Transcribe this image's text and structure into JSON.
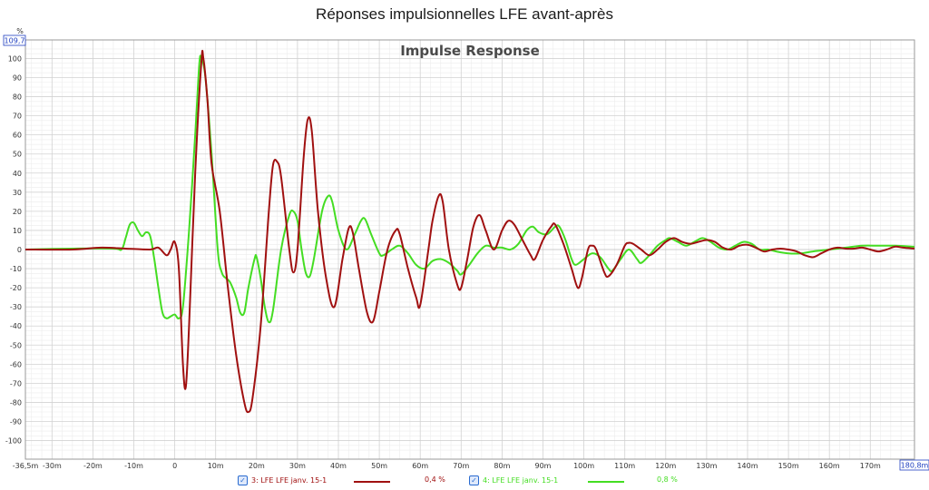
{
  "page": {
    "title": "Réponses impulsionnelles LFE avant-après"
  },
  "chart_data": {
    "type": "line",
    "title": "Impulse Response",
    "xlabel": "",
    "ylabel": "%",
    "xlim": [
      -36.5,
      180.8
    ],
    "ylim": [
      -109.7,
      109.7
    ],
    "x_ticks": [
      {
        "v": -36.5,
        "label": "-36,5m"
      },
      {
        "v": -30,
        "label": "-30m"
      },
      {
        "v": -20,
        "label": "-20m"
      },
      {
        "v": -10,
        "label": "-10m"
      },
      {
        "v": 0,
        "label": "0"
      },
      {
        "v": 10,
        "label": "10m"
      },
      {
        "v": 20,
        "label": "20m"
      },
      {
        "v": 30,
        "label": "30m"
      },
      {
        "v": 40,
        "label": "40m"
      },
      {
        "v": 50,
        "label": "50m"
      },
      {
        "v": 60,
        "label": "60m"
      },
      {
        "v": 70,
        "label": "70m"
      },
      {
        "v": 80,
        "label": "80m"
      },
      {
        "v": 90,
        "label": "90m"
      },
      {
        "v": 100,
        "label": "100m"
      },
      {
        "v": 110,
        "label": "110m"
      },
      {
        "v": 120,
        "label": "120m"
      },
      {
        "v": 130,
        "label": "130m"
      },
      {
        "v": 140,
        "label": "140m"
      },
      {
        "v": 150,
        "label": "150m"
      },
      {
        "v": 160,
        "label": "160m"
      },
      {
        "v": 170,
        "label": "170m"
      }
    ],
    "x_end_label": "180,8m",
    "y_top_label": "109,7",
    "y_ticks": [
      100,
      90,
      80,
      70,
      60,
      50,
      40,
      30,
      20,
      10,
      0,
      -10,
      -20,
      -30,
      -40,
      -50,
      -60,
      -70,
      -80,
      -90,
      -100
    ],
    "grid": true,
    "legend_position": "bottom",
    "series": [
      {
        "name": "3: LFE LFE janv. 15-1",
        "value_label": "0,4 %",
        "color": "#a01010",
        "points": [
          [
            -36.5,
            0
          ],
          [
            -25,
            0
          ],
          [
            -18,
            1
          ],
          [
            -12,
            0.5
          ],
          [
            -6,
            0
          ],
          [
            -4,
            1
          ],
          [
            -2,
            -3
          ],
          [
            -1,
            0
          ],
          [
            0,
            4
          ],
          [
            1,
            -10
          ],
          [
            2,
            -60
          ],
          [
            2.7,
            -72
          ],
          [
            3.5,
            -40
          ],
          [
            5,
            40
          ],
          [
            6.5,
            98
          ],
          [
            7,
            100
          ],
          [
            8,
            78
          ],
          [
            9,
            45
          ],
          [
            11,
            20
          ],
          [
            13,
            -20
          ],
          [
            15,
            -55
          ],
          [
            17,
            -80
          ],
          [
            18,
            -85
          ],
          [
            19,
            -78
          ],
          [
            21,
            -40
          ],
          [
            23,
            20
          ],
          [
            24,
            44
          ],
          [
            25,
            46
          ],
          [
            26,
            38
          ],
          [
            28,
            0
          ],
          [
            29,
            -12
          ],
          [
            30,
            0
          ],
          [
            31.5,
            48
          ],
          [
            32.5,
            68
          ],
          [
            33.5,
            62
          ],
          [
            35,
            20
          ],
          [
            37,
            -15
          ],
          [
            39,
            -30
          ],
          [
            41,
            -5
          ],
          [
            42.5,
            11
          ],
          [
            43.5,
            9
          ],
          [
            45,
            -10
          ],
          [
            47,
            -33
          ],
          [
            48.5,
            -37.5
          ],
          [
            50,
            -22
          ],
          [
            52,
            0
          ],
          [
            54,
            10
          ],
          [
            55,
            8
          ],
          [
            57,
            -10
          ],
          [
            59,
            -25
          ],
          [
            60,
            -29
          ],
          [
            62,
            0
          ],
          [
            63,
            15
          ],
          [
            64.5,
            28
          ],
          [
            65.5,
            25
          ],
          [
            67,
            0
          ],
          [
            69,
            -18
          ],
          [
            70,
            -20
          ],
          [
            71.5,
            -5
          ],
          [
            73,
            12
          ],
          [
            74.5,
            18
          ],
          [
            76,
            10
          ],
          [
            78,
            0
          ],
          [
            80,
            10
          ],
          [
            81.5,
            15
          ],
          [
            83,
            13
          ],
          [
            85,
            5
          ],
          [
            87,
            -3
          ],
          [
            88,
            -5
          ],
          [
            90,
            5
          ],
          [
            92,
            12
          ],
          [
            93,
            13
          ],
          [
            95,
            3
          ],
          [
            97,
            -10
          ],
          [
            98.5,
            -20
          ],
          [
            99.5,
            -15
          ],
          [
            101,
            0
          ],
          [
            102,
            2
          ],
          [
            103,
            0
          ],
          [
            105,
            -12
          ],
          [
            106,
            -14
          ],
          [
            108,
            -8
          ],
          [
            110,
            2
          ],
          [
            111,
            3.5
          ],
          [
            112,
            3
          ],
          [
            114,
            0
          ],
          [
            116,
            -3
          ],
          [
            118,
            0
          ],
          [
            120,
            4
          ],
          [
            122,
            6
          ],
          [
            124,
            4
          ],
          [
            126,
            3
          ],
          [
            128,
            4
          ],
          [
            130,
            5
          ],
          [
            132,
            4
          ],
          [
            134,
            1
          ],
          [
            136,
            0
          ],
          [
            138,
            2
          ],
          [
            140,
            2.5
          ],
          [
            142,
            1
          ],
          [
            144,
            -1
          ],
          [
            146,
            0
          ],
          [
            148,
            0.5
          ],
          [
            150,
            0
          ],
          [
            152,
            -1
          ],
          [
            154,
            -3
          ],
          [
            156,
            -4
          ],
          [
            158,
            -2
          ],
          [
            160,
            0
          ],
          [
            162,
            1
          ],
          [
            164,
            0.5
          ],
          [
            166,
            0.5
          ],
          [
            168,
            1
          ],
          [
            170,
            0
          ],
          [
            172,
            -1
          ],
          [
            174,
            0
          ],
          [
            176,
            1.5
          ],
          [
            178,
            1
          ],
          [
            180.8,
            0.5
          ]
        ]
      },
      {
        "name": "4: LFE LFE janv. 15-1",
        "value_label": "0,8 %",
        "color": "#44dd22",
        "points": [
          [
            -36.5,
            0
          ],
          [
            -25,
            0.5
          ],
          [
            -15,
            0.5
          ],
          [
            -13,
            0
          ],
          [
            -12,
            6
          ],
          [
            -11,
            13
          ],
          [
            -10,
            14
          ],
          [
            -9,
            10
          ],
          [
            -8,
            7
          ],
          [
            -7,
            9
          ],
          [
            -6,
            7
          ],
          [
            -5,
            -5
          ],
          [
            -4,
            -20
          ],
          [
            -3,
            -33
          ],
          [
            -2,
            -36
          ],
          [
            -1,
            -35
          ],
          [
            0,
            -34
          ],
          [
            1,
            -36
          ],
          [
            2,
            -30
          ],
          [
            3.5,
            10
          ],
          [
            5,
            60
          ],
          [
            6,
            97
          ],
          [
            6.5,
            100
          ],
          [
            7.5,
            90
          ],
          [
            9,
            50
          ],
          [
            10.5,
            0
          ],
          [
            11.5,
            -12
          ],
          [
            12.5,
            -15
          ],
          [
            13.5,
            -17
          ],
          [
            15,
            -25
          ],
          [
            16,
            -33
          ],
          [
            17,
            -33
          ],
          [
            18,
            -20
          ],
          [
            19.5,
            -5
          ],
          [
            20,
            -4
          ],
          [
            21,
            -15
          ],
          [
            22,
            -30
          ],
          [
            23,
            -38
          ],
          [
            24,
            -32
          ],
          [
            26,
            0
          ],
          [
            28,
            18
          ],
          [
            29,
            20
          ],
          [
            30,
            15
          ],
          [
            31,
            0
          ],
          [
            32,
            -12
          ],
          [
            33,
            -14
          ],
          [
            34,
            -5
          ],
          [
            36,
            20
          ],
          [
            37.5,
            28
          ],
          [
            38.5,
            25
          ],
          [
            40,
            10
          ],
          [
            42,
            0
          ],
          [
            44,
            8
          ],
          [
            45.5,
            15
          ],
          [
            46.5,
            16
          ],
          [
            48,
            8
          ],
          [
            50,
            -2
          ],
          [
            51,
            -3
          ],
          [
            53,
            0
          ],
          [
            55,
            2
          ],
          [
            57,
            -2
          ],
          [
            59,
            -8
          ],
          [
            61,
            -10
          ],
          [
            63,
            -6
          ],
          [
            65,
            -5
          ],
          [
            67,
            -7
          ],
          [
            69,
            -11
          ],
          [
            70,
            -13
          ],
          [
            72,
            -8
          ],
          [
            74,
            -2
          ],
          [
            76,
            2
          ],
          [
            78,
            1
          ],
          [
            80,
            1
          ],
          [
            82,
            0
          ],
          [
            84,
            3
          ],
          [
            86,
            10
          ],
          [
            87.5,
            12
          ],
          [
            89,
            9
          ],
          [
            91,
            8
          ],
          [
            93,
            12
          ],
          [
            94,
            12
          ],
          [
            95.5,
            5
          ],
          [
            97,
            -5
          ],
          [
            98,
            -8
          ],
          [
            100,
            -5
          ],
          [
            102,
            -2
          ],
          [
            104,
            -4
          ],
          [
            106,
            -10
          ],
          [
            107,
            -11
          ],
          [
            109,
            -5
          ],
          [
            111,
            0
          ],
          [
            113,
            -5
          ],
          [
            114,
            -7
          ],
          [
            116,
            -3
          ],
          [
            118,
            2
          ],
          [
            120,
            5
          ],
          [
            121,
            6
          ],
          [
            123,
            4
          ],
          [
            125,
            2
          ],
          [
            127,
            4
          ],
          [
            129,
            6
          ],
          [
            131,
            4
          ],
          [
            133,
            1
          ],
          [
            135,
            0
          ],
          [
            137,
            2
          ],
          [
            139,
            4
          ],
          [
            141,
            3
          ],
          [
            143,
            0
          ],
          [
            145,
            0
          ],
          [
            147,
            -1
          ],
          [
            150,
            -2
          ],
          [
            153,
            -2
          ],
          [
            156,
            -1
          ],
          [
            160,
            0
          ],
          [
            164,
            1
          ],
          [
            168,
            2
          ],
          [
            172,
            2
          ],
          [
            176,
            2
          ],
          [
            180.8,
            1.5
          ]
        ]
      }
    ]
  }
}
